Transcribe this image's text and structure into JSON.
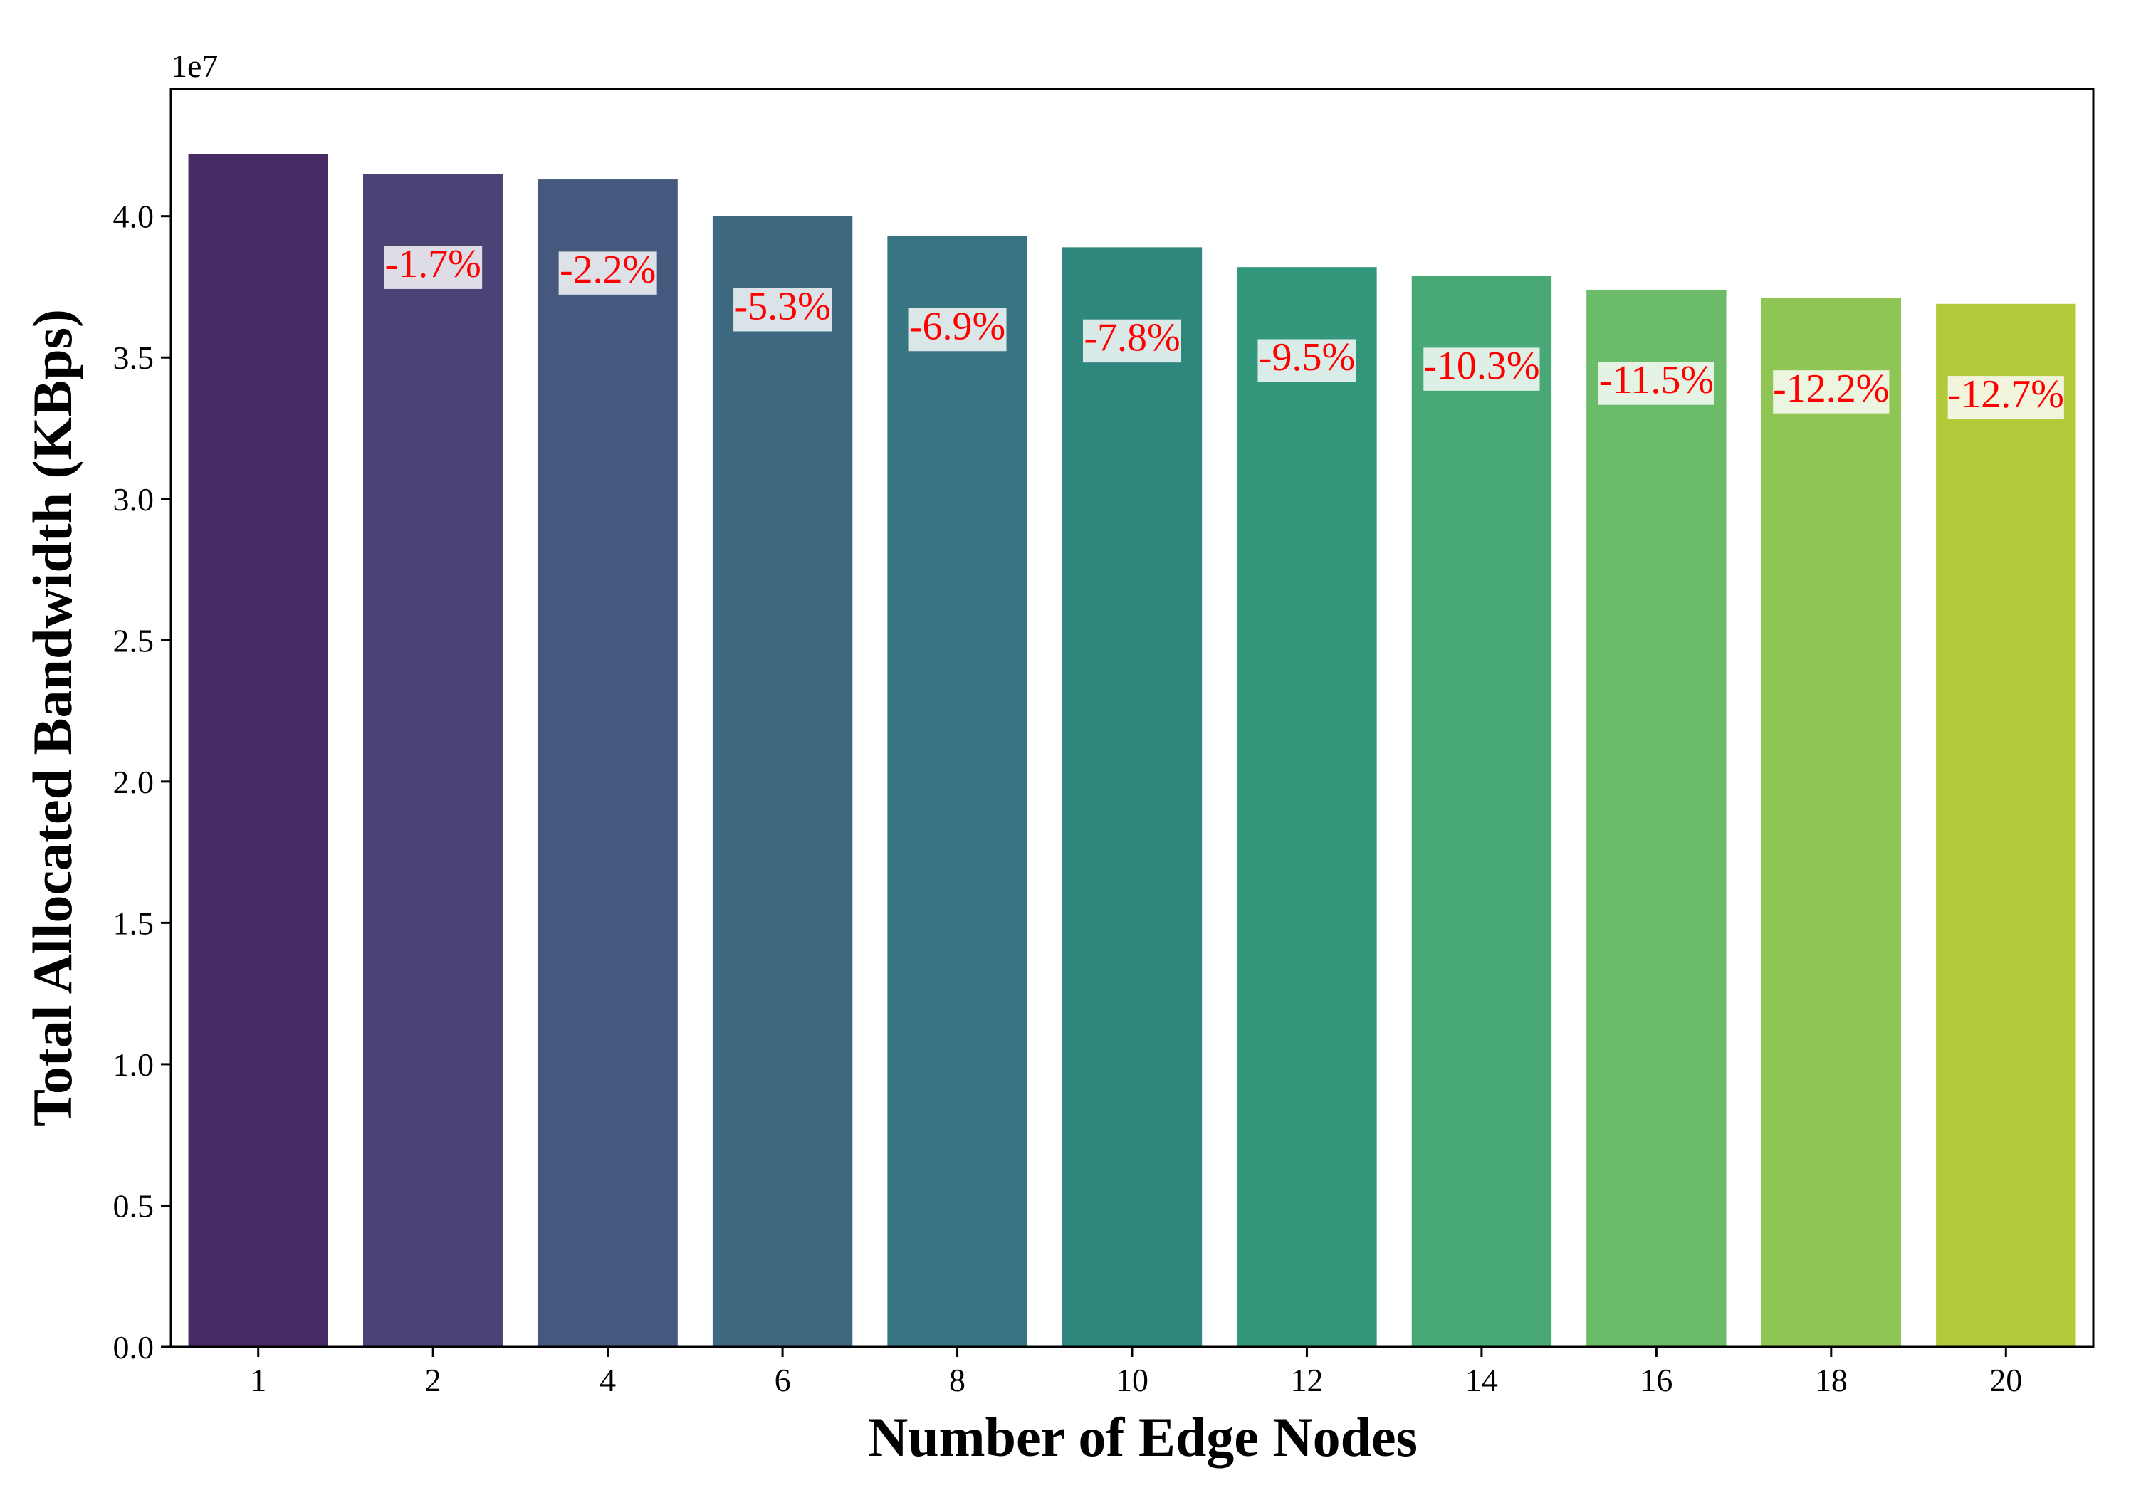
{
  "chart_data": {
    "type": "bar",
    "title": "",
    "xlabel": "Number of Edge Nodes",
    "ylabel": "Total Allocated Bandwidth (KBps)",
    "y_offset_text": "1e7",
    "ylim": [
      0,
      4.45
    ],
    "y_ticks": [
      "0.0",
      "0.5",
      "1.0",
      "1.5",
      "2.0",
      "2.5",
      "3.0",
      "3.5",
      "4.0"
    ],
    "categories": [
      "1",
      "2",
      "4",
      "6",
      "8",
      "10",
      "12",
      "14",
      "16",
      "18",
      "20"
    ],
    "values": [
      4.22,
      4.15,
      4.13,
      4.0,
      3.93,
      3.89,
      3.82,
      3.79,
      3.74,
      3.71,
      3.69
    ],
    "value_unit_multiplier": "1e7",
    "annotations": [
      "",
      "-1.7%",
      "-2.2%",
      "-5.3%",
      "-6.9%",
      "-7.8%",
      "-9.5%",
      "-10.3%",
      "-11.5%",
      "-12.2%",
      "-12.7%"
    ],
    "annotation_color": "#ff0000",
    "colors": [
      "#472a63",
      "#4b4276",
      "#45597e",
      "#3e6780",
      "#367581",
      "#2e867d",
      "#33977c",
      "#49a976",
      "#6cbb69",
      "#8fc554",
      "#b4c93a"
    ],
    "grid": false,
    "legend": "none"
  }
}
